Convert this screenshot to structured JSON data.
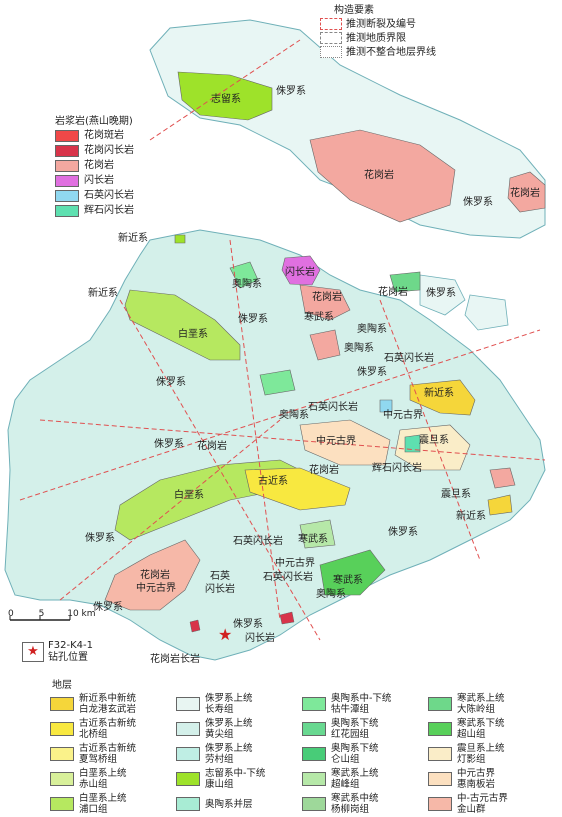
{
  "structure_legend": {
    "title": "构造要素",
    "items": [
      {
        "label": "推测断裂及编号",
        "style": "dashed-red"
      },
      {
        "label": "推测地质界限",
        "style": "dashed-gray"
      },
      {
        "label": "推测不整合地层界线",
        "style": "dotted-gray"
      }
    ]
  },
  "intrusive_legend": {
    "title": "岩浆岩(燕山晚期)",
    "items": [
      {
        "label": "花岗斑岩",
        "color": "#f04848"
      },
      {
        "label": "花岗闪长岩",
        "color": "#d8344a"
      },
      {
        "label": "花岗岩",
        "color": "#f3a8a0"
      },
      {
        "label": "闪长岩",
        "color": "#e070e0"
      },
      {
        "label": "石英闪长岩",
        "color": "#90d8f0"
      },
      {
        "label": "辉石闪长岩",
        "color": "#5ee0b0"
      }
    ]
  },
  "map_labels": {
    "silurian_top": "志留系",
    "jurassic_top": "侏罗系",
    "granite_big": "花岗岩",
    "jurassic_right": "侏罗系",
    "granite_right": "花岗岩",
    "neogene_1": "新近系",
    "neogene_2": "新近系",
    "ordovician_1": "奥陶系",
    "diorite": "闪长岩",
    "granite_2": "花岗岩",
    "granite_3": "花岗岩",
    "jurassic_3": "侏罗系",
    "cretaceous_2": "白垩系",
    "jurassic_4": "侏罗系",
    "cambrian_1": "寒武系",
    "ordovician_2": "奥陶系",
    "ordovician_3": "奥陶系",
    "qd_1": "石英闪长岩",
    "jurassic_5": "侏罗系",
    "neogene_3": "新近系",
    "jurassic_6": "侏罗系",
    "ordovician_4": "奥陶系",
    "qd_2": "石英闪长岩",
    "mesoprot_1": "中元古界",
    "mesoprot_2": "中元古界",
    "sinian_1": "震旦系",
    "jurassic_7": "侏罗系",
    "granite_4": "花岗岩",
    "granite_5": "花岗岩",
    "pd": "辉石闪长岩",
    "paleogene": "古近系",
    "cretaceous_3": "白垩系",
    "sinian_2": "震旦系",
    "neogene_4": "新近系",
    "jurassic_8": "侏罗系",
    "jurassic_9": "侏罗系",
    "qd_3": "石英闪长岩",
    "cambrian_2": "寒武系",
    "mesoprot_3": "中元古界",
    "qd_4": "石英闪长岩",
    "cambrian_3": "寒武系",
    "ordovician_5": "奥陶系",
    "granite_6": "花岗岩",
    "mesoprot_4": "中元古界",
    "qd_5a": "石英",
    "qd_5b": "闪长岩",
    "jurassic_10": "侏罗系",
    "jurassic_11": "侏罗系",
    "diorite_2": "闪长岩",
    "gd": "花岗岩长岩"
  },
  "scale_bar": {
    "labels": [
      "0",
      "5",
      "10 km"
    ]
  },
  "well": {
    "id": "F32-K4-1",
    "label": "钻孔位置"
  },
  "strat_legend": {
    "title": "地层",
    "items": [
      {
        "label1": "新近系中新统",
        "label2": "白龙港玄武岩",
        "color": "#f5d63a"
      },
      {
        "label1": "侏罗系上统",
        "label2": "长寿组",
        "color": "#e8f5f2"
      },
      {
        "label1": "奥陶系中-下统",
        "label2": "牯牛潭组",
        "color": "#7ee89a"
      },
      {
        "label1": "寒武系上统",
        "label2": "大陈岭组",
        "color": "#6ed88a"
      },
      {
        "label1": "古近系古新统",
        "label2": "北桥组",
        "color": "#f8e840"
      },
      {
        "label1": "侏罗系上统",
        "label2": "黄尖组",
        "color": "#d4f0ea"
      },
      {
        "label1": "奥陶系下统",
        "label2": "红花园组",
        "color": "#68d890"
      },
      {
        "label1": "寒武系下统",
        "label2": "超山组",
        "color": "#58d05a"
      },
      {
        "label1": "古近系古新统",
        "label2": "夏驾桥组",
        "color": "#faf28a"
      },
      {
        "label1": "侏罗系上统",
        "label2": "劳村组",
        "color": "#bfeee4"
      },
      {
        "label1": "奥陶系下统",
        "label2": "仑山组",
        "color": "#48cc78"
      },
      {
        "label1": "震旦系上统",
        "label2": "灯影组",
        "color": "#faedc8"
      },
      {
        "label1": "白垩系上统",
        "label2": "赤山组",
        "color": "#d8f09a"
      },
      {
        "label1": "志留系中-下统",
        "label2": "康山组",
        "color": "#9ee22a"
      },
      {
        "label1": "寒武系上统",
        "label2": "超峰组",
        "color": "#b6e8a8"
      },
      {
        "label1": "中元古界",
        "label2": "惠南板岩",
        "color": "#fce0c0"
      },
      {
        "label1": "白垩系上统",
        "label2": "浦口组",
        "color": "#b6e860"
      },
      {
        "label1": "奥陶系并层",
        "label2": "",
        "color": "#a8ecd4"
      },
      {
        "label1": "寒武系中统",
        "label2": "杨柳岗组",
        "color": "#9ed89a"
      },
      {
        "label1": "中-古元古界",
        "label2": "金山群",
        "color": "#f6b8a8"
      }
    ]
  }
}
